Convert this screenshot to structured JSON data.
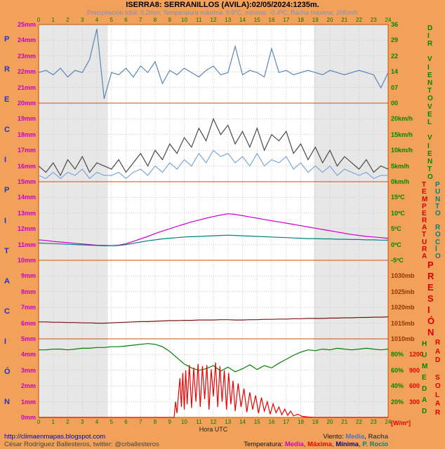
{
  "header": {
    "title": "ISERRA8: SERRANILLOS (AVILA):02/05/2024:1235m.",
    "subtitle": "Precipitación total: 0.2mm; Temperatura máxima: 9.8ºC, mínima: -0.4ºC; Racha máxima: 20Km/h"
  },
  "footer": {
    "link": "http://climaenmapas.blogspot.com",
    "author": "César Rodríguez Ballesteros, twitter: ",
    "twitter_handle": "@crballesteros",
    "xlabel": "Hora UTC",
    "wind_legend": {
      "label": "Viento:",
      "items": [
        {
          "text": "Media",
          "color": "#4477cc"
        },
        {
          "text": "Racha",
          "color": "#444444"
        }
      ]
    },
    "temp_legend": {
      "label": "Temperatura:",
      "items": [
        {
          "text": "Media",
          "color": "#cc00cc"
        },
        {
          "text": "Máxima",
          "color": "#ee0000"
        },
        {
          "text": "Mínima",
          "color": "#000099"
        },
        {
          "text": "P. Rocío",
          "color": "#008080"
        }
      ]
    }
  },
  "chart_data": {
    "type": "line",
    "x_axis": {
      "unit": "h UTC",
      "min": 0,
      "max": 24,
      "ticks": [
        "0",
        "1",
        "2",
        "3",
        "4",
        "5",
        "6",
        "7",
        "8",
        "9",
        "10",
        "11",
        "12",
        "13",
        "14",
        "15",
        "16",
        "17",
        "18",
        "19",
        "20",
        "21",
        "22",
        "23",
        "24"
      ]
    },
    "y_axis_mm": {
      "unit": "mm",
      "min": 0,
      "max": 25,
      "labels": [
        "25mm",
        "24mm",
        "23mm",
        "22mm",
        "21mm",
        "20mm",
        "19mm",
        "18mm",
        "17mm",
        "16mm",
        "15mm",
        "14mm",
        "13mm",
        "12mm",
        "11mm",
        "10mm",
        "9mm",
        "8mm",
        "7mm",
        "6mm",
        "5mm",
        "4mm",
        "3mm",
        "2mm",
        "1mm",
        "0mm"
      ]
    },
    "left_axis_word": {
      "text": "PRECIPITACIÓN",
      "color": "#2233cc"
    },
    "night_bands": [
      [
        0,
        4.75
      ],
      [
        18.9,
        24
      ]
    ],
    "panels": [
      {
        "name": "wind-direction",
        "mm_range": [
          20,
          25
        ],
        "value_range": [
          0,
          36
        ],
        "label_color": "#008800",
        "right_labels": [
          {
            "text": "36",
            "value": 36
          },
          {
            "text": "29",
            "value": 28.8
          },
          {
            "text": "22",
            "value": 21.6
          },
          {
            "text": "14",
            "value": 14.4
          },
          {
            "text": "07",
            "value": 7.2
          },
          {
            "text": "00",
            "value": 0
          }
        ],
        "side_words": [
          {
            "text": "DIR VIENTO",
            "color": "#008800"
          }
        ],
        "series": [
          {
            "name": "direccion-viento",
            "unit": "decenas de grado",
            "color": "#5b84b8",
            "values": [
              14,
              15,
              13,
              16,
              12,
              15,
              14,
              20,
              34,
              2,
              14,
              13,
              16,
              12,
              17,
              14,
              19,
              9,
              15,
              13,
              16,
              14,
              12,
              15,
              17,
              13,
              14,
              26,
              13,
              15,
              14,
              12,
              25,
              14,
              15,
              13,
              14,
              15,
              14,
              13,
              15,
              14,
              13,
              14,
              15,
              14,
              13,
              7,
              14
            ]
          }
        ]
      },
      {
        "name": "wind-speed",
        "mm_range": [
          15,
          20
        ],
        "value_range": [
          0,
          25
        ],
        "label_color": "#008800",
        "right_labels": [
          {
            "text": "20km/h",
            "value": 20
          },
          {
            "text": "15km/h",
            "value": 15
          },
          {
            "text": "10km/h",
            "value": 10
          },
          {
            "text": "5km/h",
            "value": 5
          },
          {
            "text": "0km/h",
            "value": 0
          }
        ],
        "side_words": [
          {
            "text": "VEL VIENTO",
            "color": "#008800"
          }
        ],
        "series": [
          {
            "name": "racha-viento",
            "unit": "km/h",
            "color": "#4a4a4a",
            "values": [
              5,
              3,
              6,
              2,
              7,
              4,
              8,
              3,
              6,
              5,
              4,
              7,
              3,
              6,
              9,
              5,
              10,
              7,
              12,
              9,
              14,
              11,
              17,
              13,
              20,
              15,
              18,
              12,
              16,
              11,
              17,
              10,
              15,
              13,
              16,
              9,
              12,
              7,
              11,
              6,
              10,
              5,
              8,
              6,
              4,
              7,
              3,
              5,
              4
            ]
          },
          {
            "name": "media-viento",
            "unit": "km/h",
            "color": "#7da7d9",
            "values": [
              2,
              1,
              3,
              1,
              3,
              2,
              4,
              1,
              3,
              2,
              2,
              3,
              1,
              3,
              4,
              2,
              5,
              3,
              6,
              4,
              7,
              5,
              9,
              6,
              10,
              8,
              9,
              6,
              8,
              5,
              9,
              5,
              7,
              6,
              8,
              4,
              6,
              3,
              5,
              3,
              5,
              2,
              4,
              3,
              2,
              3,
              1,
              2,
              2
            ]
          }
        ]
      },
      {
        "name": "temperature-dewpoint",
        "mm_range": [
          10,
          15
        ],
        "value_range": [
          -5,
          20
        ],
        "label_color": "#008800",
        "right_labels": [
          {
            "text": "15ºC",
            "value": 15
          },
          {
            "text": "10ºC",
            "value": 10
          },
          {
            "text": "5ºC",
            "value": 5
          },
          {
            "text": "0ºC",
            "value": 0
          },
          {
            "text": "-5ºC",
            "value": -5
          }
        ],
        "side_words": [
          {
            "text": "TEMPERATURA",
            "color": "#dd0000"
          },
          {
            "text": "PUNTO ROCÍO",
            "color": "#008080"
          }
        ],
        "series": [
          {
            "name": "temperatura-media",
            "unit": "ºC",
            "color": "#cc00cc",
            "values": [
              1.5,
              1.3,
              1.0,
              0.8,
              0.6,
              0.4,
              0.2,
              0.0,
              -0.2,
              -0.3,
              -0.4,
              -0.2,
              0.3,
              1.0,
              1.8,
              2.6,
              3.5,
              4.3,
              5.0,
              5.8,
              6.5,
              7.2,
              7.8,
              8.4,
              8.9,
              9.4,
              9.8,
              9.6,
              9.2,
              8.8,
              8.4,
              8.0,
              7.6,
              7.2,
              6.8,
              6.4,
              6.0,
              5.6,
              5.2,
              4.8,
              4.4,
              4.0,
              3.6,
              3.2,
              2.9,
              2.6,
              2.4,
              2.2,
              2.0
            ]
          },
          {
            "name": "punto-rocio",
            "unit": "ºC",
            "color": "#008080",
            "values": [
              0.5,
              0.4,
              0.3,
              0.2,
              0.1,
              0.0,
              -0.1,
              -0.2,
              -0.3,
              -0.4,
              -0.4,
              -0.3,
              0.0,
              0.4,
              0.8,
              1.2,
              1.5,
              1.8,
              2.0,
              2.2,
              2.4,
              2.5,
              2.6,
              2.7,
              2.8,
              2.9,
              3.0,
              2.9,
              2.8,
              2.7,
              2.6,
              2.5,
              2.4,
              2.3,
              2.2,
              2.1,
              2.0,
              1.9,
              1.9,
              1.8,
              1.8,
              1.7,
              1.7,
              1.6,
              1.6,
              1.5,
              1.5,
              1.4,
              1.4
            ]
          }
        ]
      },
      {
        "name": "pressure",
        "mm_range": [
          5,
          10
        ],
        "value_range": [
          1010,
          1035
        ],
        "label_color": "#993300",
        "right_labels": [
          {
            "text": "1030mb",
            "value": 1030
          },
          {
            "text": "1025mb",
            "value": 1025
          },
          {
            "text": "1020mb",
            "value": 1020
          },
          {
            "text": "1015mb",
            "value": 1015
          },
          {
            "text": "1010mb",
            "value": 1010
          }
        ],
        "side_words": [
          {
            "text": "PRESIÓN",
            "color": "#dd0000",
            "size": 13
          }
        ],
        "series": [
          {
            "name": "presion",
            "unit": "mb",
            "color": "#7a1515",
            "values": [
              1015.4,
              1015.4,
              1015.3,
              1015.3,
              1015.2,
              1015.2,
              1015.1,
              1015.1,
              1015.0,
              1015.0,
              1015.1,
              1015.2,
              1015.3,
              1015.4,
              1015.5,
              1015.5,
              1015.6,
              1015.7,
              1015.8,
              1015.8,
              1015.9,
              1015.9,
              1016.0,
              1016.0,
              1016.0,
              1016.1,
              1016.1,
              1016.0,
              1016.0,
              1016.1,
              1016.1,
              1016.2,
              1016.2,
              1016.3,
              1016.3,
              1016.4,
              1016.4,
              1016.5,
              1016.5,
              1016.5,
              1016.6,
              1016.6,
              1016.7,
              1016.7,
              1016.8,
              1016.8,
              1016.9,
              1016.9,
              1017.0
            ]
          }
        ]
      },
      {
        "name": "humidity-radiation",
        "mm_range": [
          0,
          5
        ],
        "value_range": [
          0,
          100
        ],
        "label_color": "#008800",
        "right_labels": [
          {
            "text": "80%",
            "value": 80
          },
          {
            "text": "1200",
            "value": 80,
            "color": "#ee0000",
            "dx": 26
          },
          {
            "text": "60%",
            "value": 60
          },
          {
            "text": "900",
            "value": 60,
            "color": "#ee0000",
            "dx": 26
          },
          {
            "text": "40%",
            "value": 40
          },
          {
            "text": "600",
            "value": 40,
            "color": "#ee0000",
            "dx": 26
          },
          {
            "text": "20%",
            "value": 20
          },
          {
            "text": "300",
            "value": 20,
            "color": "#ee0000",
            "dx": 26
          },
          {
            "text": "[W/m²]",
            "value": 0,
            "color": "#ee0000",
            "dy": 8
          }
        ],
        "side_words": [
          {
            "text": "HUMEDAD",
            "color": "#008800"
          },
          {
            "text": "RAD SOLAR",
            "color": "#dd0000"
          }
        ],
        "series": [
          {
            "name": "humedad",
            "unit": "%",
            "color": "#008000",
            "values": [
              86,
              86,
              87,
              87,
              86,
              87,
              88,
              88,
              89,
              89,
              90,
              90,
              91,
              92,
              93,
              94,
              93,
              90,
              84,
              76,
              68,
              63,
              60,
              62,
              66,
              59,
              64,
              58,
              62,
              67,
              61,
              66,
              63,
              69,
              74,
              79,
              83,
              86,
              85,
              87,
              86,
              88,
              87,
              86,
              87,
              88,
              87,
              86,
              87
            ]
          },
          {
            "name": "radiacion-solar",
            "unit": "W/m²",
            "color": "#ee0000",
            "value_range": [
              0,
              1500
            ],
            "points": [
              [
                0,
                0
              ],
              [
                9.3,
                0
              ],
              [
                9.4,
                300
              ],
              [
                9.5,
                80
              ],
              [
                9.7,
                750
              ],
              [
                9.8,
                200
              ],
              [
                9.9,
                850
              ],
              [
                10.0,
                150
              ],
              [
                10.1,
                900
              ],
              [
                10.2,
                250
              ],
              [
                10.35,
                1000
              ],
              [
                10.5,
                180
              ],
              [
                10.65,
                950
              ],
              [
                10.8,
                300
              ],
              [
                10.95,
                1020
              ],
              [
                11.1,
                200
              ],
              [
                11.25,
                980
              ],
              [
                11.4,
                350
              ],
              [
                11.55,
                1000
              ],
              [
                11.7,
                150
              ],
              [
                11.85,
                920
              ],
              [
                12.0,
                400
              ],
              [
                12.15,
                1050
              ],
              [
                12.3,
                200
              ],
              [
                12.45,
                980
              ],
              [
                12.6,
                300
              ],
              [
                12.75,
                900
              ],
              [
                12.9,
                150
              ],
              [
                13.05,
                850
              ],
              [
                13.2,
                250
              ],
              [
                13.35,
                700
              ],
              [
                13.5,
                120
              ],
              [
                13.7,
                650
              ],
              [
                13.9,
                200
              ],
              [
                14.1,
                550
              ],
              [
                14.3,
                100
              ],
              [
                14.5,
                480
              ],
              [
                14.7,
                150
              ],
              [
                14.9,
                420
              ],
              [
                15.1,
                80
              ],
              [
                15.3,
                380
              ],
              [
                15.5,
                120
              ],
              [
                15.7,
                300
              ],
              [
                15.9,
                60
              ],
              [
                16.1,
                260
              ],
              [
                16.3,
                90
              ],
              [
                16.5,
                200
              ],
              [
                16.7,
                50
              ],
              [
                16.9,
                160
              ],
              [
                17.1,
                40
              ],
              [
                17.3,
                120
              ],
              [
                17.5,
                30
              ],
              [
                17.8,
                60
              ],
              [
                18.1,
                20
              ],
              [
                18.5,
                8
              ],
              [
                19.0,
                0
              ],
              [
                24,
                0
              ]
            ]
          }
        ]
      }
    ]
  }
}
